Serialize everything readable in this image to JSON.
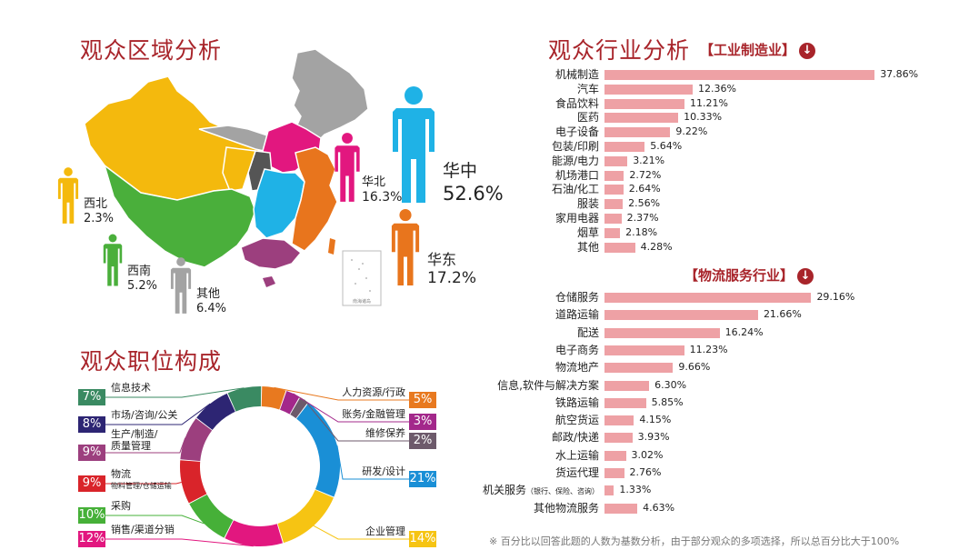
{
  "sections": {
    "region_title": "观众区域分析",
    "industry_title": "观众行业分析",
    "position_title": "观众职位构成",
    "industry_manufacturing": "【工业制造业】",
    "industry_logistics": "【物流服务行业】",
    "arrow_icon": "↓"
  },
  "regions": [
    {
      "name": "华中",
      "value": "52.6%",
      "color": "#1fb2e6"
    },
    {
      "name": "华东",
      "value": "17.2%",
      "color": "#e8751d"
    },
    {
      "name": "华北",
      "value": "16.3%",
      "color": "#e2177f"
    },
    {
      "name": "西北",
      "value": "2.3%",
      "color": "#f4b90d"
    },
    {
      "name": "西南",
      "value": "5.2%",
      "color": "#4aaf3b"
    },
    {
      "name": "其他",
      "value": "6.4%",
      "color": "#a3a3a3"
    }
  ],
  "map_inset_label": "南海诸岛",
  "chart_data": [
    {
      "type": "bar",
      "title": "【工业制造业】",
      "categories": [
        "机械制造",
        "汽车",
        "食品饮料",
        "医药",
        "电子设备",
        "包装/印刷",
        "能源/电力",
        "机场港口",
        "石油/化工",
        "服装",
        "家用电器",
        "烟草",
        "其他"
      ],
      "values": [
        37.86,
        12.36,
        11.21,
        10.33,
        9.22,
        5.64,
        3.21,
        2.72,
        2.64,
        2.56,
        2.37,
        2.18,
        4.28
      ],
      "labels": [
        "37.86%",
        "12.36%",
        "11.21%",
        "10.33%",
        "9.22%",
        "5.64%",
        "3.21%",
        "2.72%",
        "2.64%",
        "2.56%",
        "2.37%",
        "2.18%",
        "4.28%"
      ],
      "bar_color": "#eea1a5"
    },
    {
      "type": "bar",
      "title": "【物流服务行业】",
      "categories": [
        "仓储服务",
        "道路运输",
        "配送",
        "电子商务",
        "物流地产",
        "信息,软件与解决方案",
        "铁路运输",
        "航空货运",
        "邮政/快递",
        "水上运输",
        "货运代理",
        "机关服务",
        "其他物流服务"
      ],
      "category_notes": [
        "",
        "",
        "",
        "",
        "",
        "",
        "",
        "",
        "",
        "",
        "",
        "（银行、保险、咨询）",
        ""
      ],
      "values": [
        29.16,
        21.66,
        16.24,
        11.23,
        9.66,
        6.3,
        5.85,
        4.15,
        3.93,
        3.02,
        2.76,
        1.33,
        4.63
      ],
      "labels": [
        "29.16%",
        "21.66%",
        "16.24%",
        "11.23%",
        "9.66%",
        "6.30%",
        "5.85%",
        "4.15%",
        "3.93%",
        "3.02%",
        "2.76%",
        "1.33%",
        "4.63%"
      ],
      "bar_color": "#eea1a5"
    },
    {
      "type": "pie",
      "title": "观众职位构成",
      "slices": [
        {
          "name": "人力资源/行政",
          "pct": "5%",
          "value": 5,
          "color": "#e8791f"
        },
        {
          "name": "账务/金融管理",
          "pct": "3%",
          "value": 3,
          "color": "#a3288b"
        },
        {
          "name": "维修保养",
          "pct": "2%",
          "value": 2,
          "color": "#6d5a6b"
        },
        {
          "name": "研发/设计",
          "pct": "21%",
          "value": 21,
          "color": "#1a8fd6"
        },
        {
          "name": "企业管理",
          "pct": "14%",
          "value": 14,
          "color": "#f6c413"
        },
        {
          "name": "销售/渠道分销",
          "pct": "12%",
          "value": 12,
          "color": "#e2177f"
        },
        {
          "name": "采购",
          "pct": "10%",
          "value": 10,
          "color": "#46b038"
        },
        {
          "name": "物流",
          "sub": "物料管理/仓储运输",
          "pct": "9%",
          "value": 9,
          "color": "#d9242a"
        },
        {
          "name": "生产/制造/质量管理",
          "pct": "9%",
          "value": 9,
          "color": "#9c3f7e"
        },
        {
          "name": "市场/咨询/公关",
          "pct": "8%",
          "value": 8,
          "color": "#2d2573"
        },
        {
          "name": "信息技术",
          "pct": "7%",
          "value": 7,
          "color": "#3a8a62"
        }
      ]
    }
  ],
  "footnote": "※ 百分比以回答此题的人数为基数分析，由于部分观众的多项选择，所以总百分比大于100%"
}
